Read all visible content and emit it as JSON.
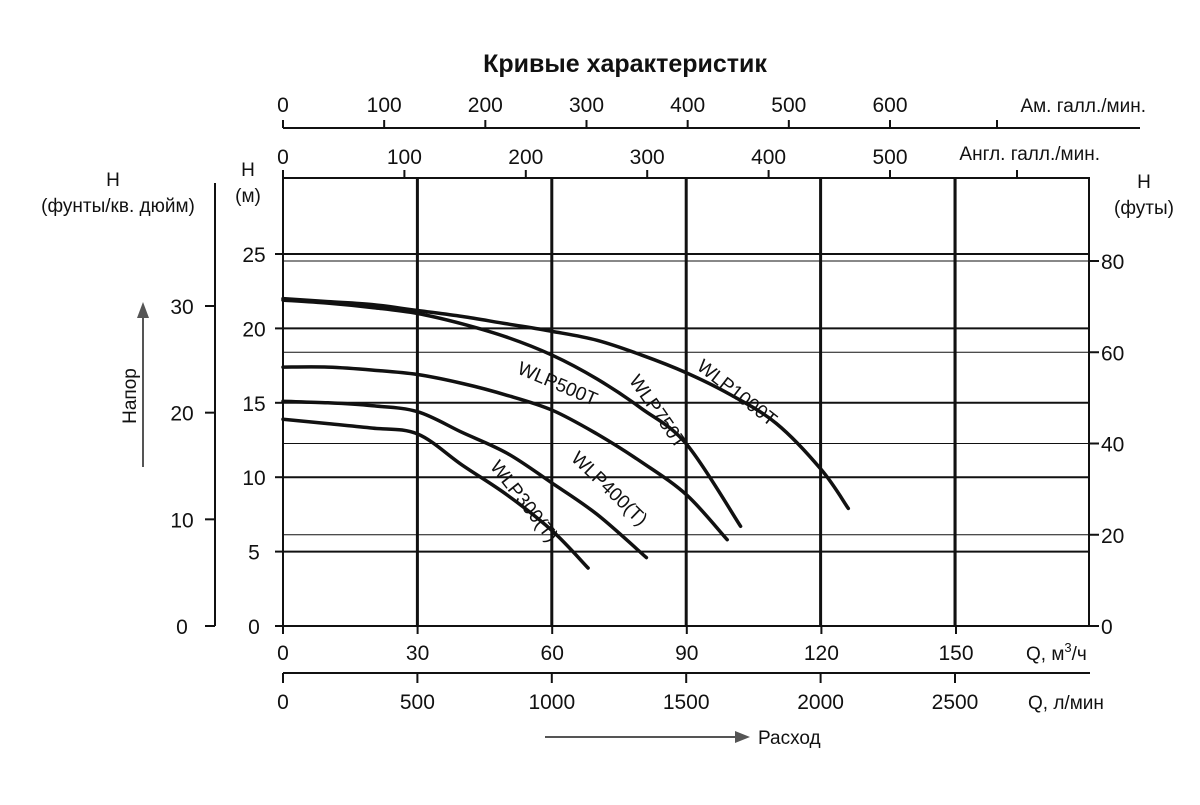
{
  "chart_data": {
    "type": "line",
    "title": "Кривые характеристик",
    "x": {
      "label": "Q, м³/ч",
      "label_parts": {
        "prefix": "Q, м",
        "sup": "3",
        "suffix": "/ч"
      },
      "range": [
        0,
        150
      ],
      "ticks": [
        "0",
        "30",
        "60",
        "90",
        "120",
        "150"
      ],
      "tick_values": [
        0,
        30,
        60,
        90,
        120,
        150
      ]
    },
    "x_lpm": {
      "label": "Q, л/мин",
      "ticks": [
        "0",
        "500",
        "1000",
        "1500",
        "2000",
        "2500"
      ],
      "tick_values": [
        0,
        500,
        1000,
        1500,
        2000,
        2500
      ]
    },
    "x_us_gpm": {
      "label": "Ам. галл./мин.",
      "ticks": [
        "0",
        "100",
        "200",
        "300",
        "400",
        "500",
        "600"
      ],
      "tick_values": [
        0,
        100,
        200,
        300,
        400,
        500,
        600
      ]
    },
    "x_imp_gpm": {
      "label": "Англ. галл./мин.",
      "ticks": [
        "0",
        "100",
        "200",
        "300",
        "400",
        "500"
      ],
      "tick_values": [
        0,
        100,
        200,
        300,
        400,
        500
      ]
    },
    "y": {
      "label_line1": "H",
      "label_line2": "(м)",
      "range": [
        0,
        30
      ],
      "ticks": [
        "0",
        "5",
        "10",
        "15",
        "20",
        "25"
      ],
      "tick_values": [
        0,
        5,
        10,
        15,
        20,
        25
      ]
    },
    "y_ft": {
      "label_line1": "H",
      "label_line2": "(футы)",
      "ticks": [
        "0",
        "20",
        "40",
        "60",
        "80"
      ],
      "tick_values": [
        0,
        20,
        40,
        60,
        80
      ]
    },
    "y_psi": {
      "label_line1": "H",
      "label_line2": "(фунты/кв. дюйм)",
      "ticks": [
        "0",
        "10",
        "20",
        "30"
      ],
      "tick_values": [
        0,
        10,
        20,
        30
      ]
    },
    "head_axis_label": "Напор",
    "flow_axis_label": "Расход",
    "grid": true,
    "series": [
      {
        "name": "WLP300(T)",
        "x": [
          0,
          10,
          20,
          30,
          40,
          50,
          60,
          68
        ],
        "y": [
          13.9,
          13.6,
          13.3,
          12.9,
          10.8,
          8.8,
          6.4,
          3.9
        ]
      },
      {
        "name": "WLP400(T)",
        "x": [
          0,
          10,
          20,
          30,
          40,
          50,
          60,
          70,
          81
        ],
        "y": [
          15.1,
          15.0,
          14.8,
          14.4,
          13.0,
          11.6,
          9.6,
          7.5,
          4.6
        ]
      },
      {
        "name": "WLP500T",
        "x": [
          0,
          10,
          20,
          30,
          40,
          50,
          60,
          70,
          80,
          90,
          99
        ],
        "y": [
          17.4,
          17.4,
          17.2,
          16.9,
          16.3,
          15.5,
          14.5,
          12.9,
          11.0,
          8.8,
          5.8
        ]
      },
      {
        "name": "WLP750T",
        "x": [
          0,
          10,
          20,
          30,
          40,
          50,
          60,
          70,
          80,
          90,
          102
        ],
        "y": [
          21.9,
          21.7,
          21.4,
          21.0,
          20.3,
          19.4,
          18.2,
          16.6,
          14.6,
          12.2,
          6.7
        ]
      },
      {
        "name": "WLP1000T",
        "x": [
          0,
          10,
          20,
          30,
          40,
          50,
          60,
          70,
          80,
          90,
          100,
          110,
          120,
          126
        ],
        "y": [
          22.0,
          21.8,
          21.6,
          21.2,
          20.8,
          20.3,
          19.8,
          19.2,
          18.2,
          17.0,
          15.5,
          13.6,
          10.5,
          7.9
        ]
      }
    ]
  }
}
